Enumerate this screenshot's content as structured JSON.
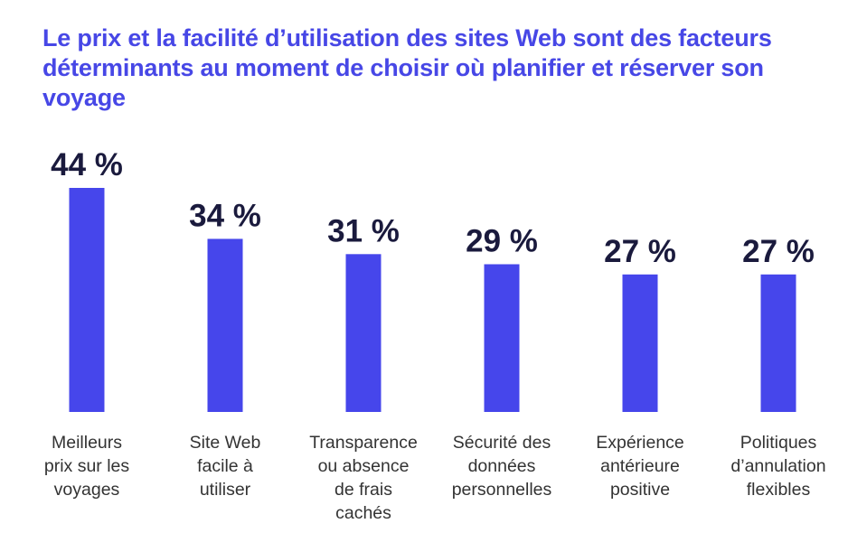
{
  "chart_data": {
    "type": "bar",
    "title": "Le prix et la facilité d’utilisation des sites Web sont des facteurs déterminants au moment de choisir où planifier et réserver son voyage",
    "categories": [
      [
        "Meilleurs",
        "prix sur les",
        "voyages"
      ],
      [
        "Site Web",
        "facile à",
        "utiliser"
      ],
      [
        "Transparence",
        "ou absence",
        "de frais",
        "cachés"
      ],
      [
        "Sécurité des",
        "données",
        "personnelles"
      ],
      [
        "Expérience",
        "antérieure",
        "positive"
      ],
      [
        "Politiques",
        "d’annulation",
        "flexibles"
      ]
    ],
    "values": [
      44,
      34,
      31,
      29,
      27,
      27
    ],
    "value_labels": [
      "44 %",
      "34 %",
      "31 %",
      "29 %",
      "27 %",
      "27 %"
    ],
    "unit": "%",
    "xlabel": "",
    "ylabel": "",
    "ylim": [
      0,
      44
    ],
    "grid": false,
    "legend": "none",
    "colors": {
      "bar": "#4646eb",
      "title": "#4747e6",
      "value_label": "#1a1a3d",
      "category_label": "#333333"
    }
  }
}
